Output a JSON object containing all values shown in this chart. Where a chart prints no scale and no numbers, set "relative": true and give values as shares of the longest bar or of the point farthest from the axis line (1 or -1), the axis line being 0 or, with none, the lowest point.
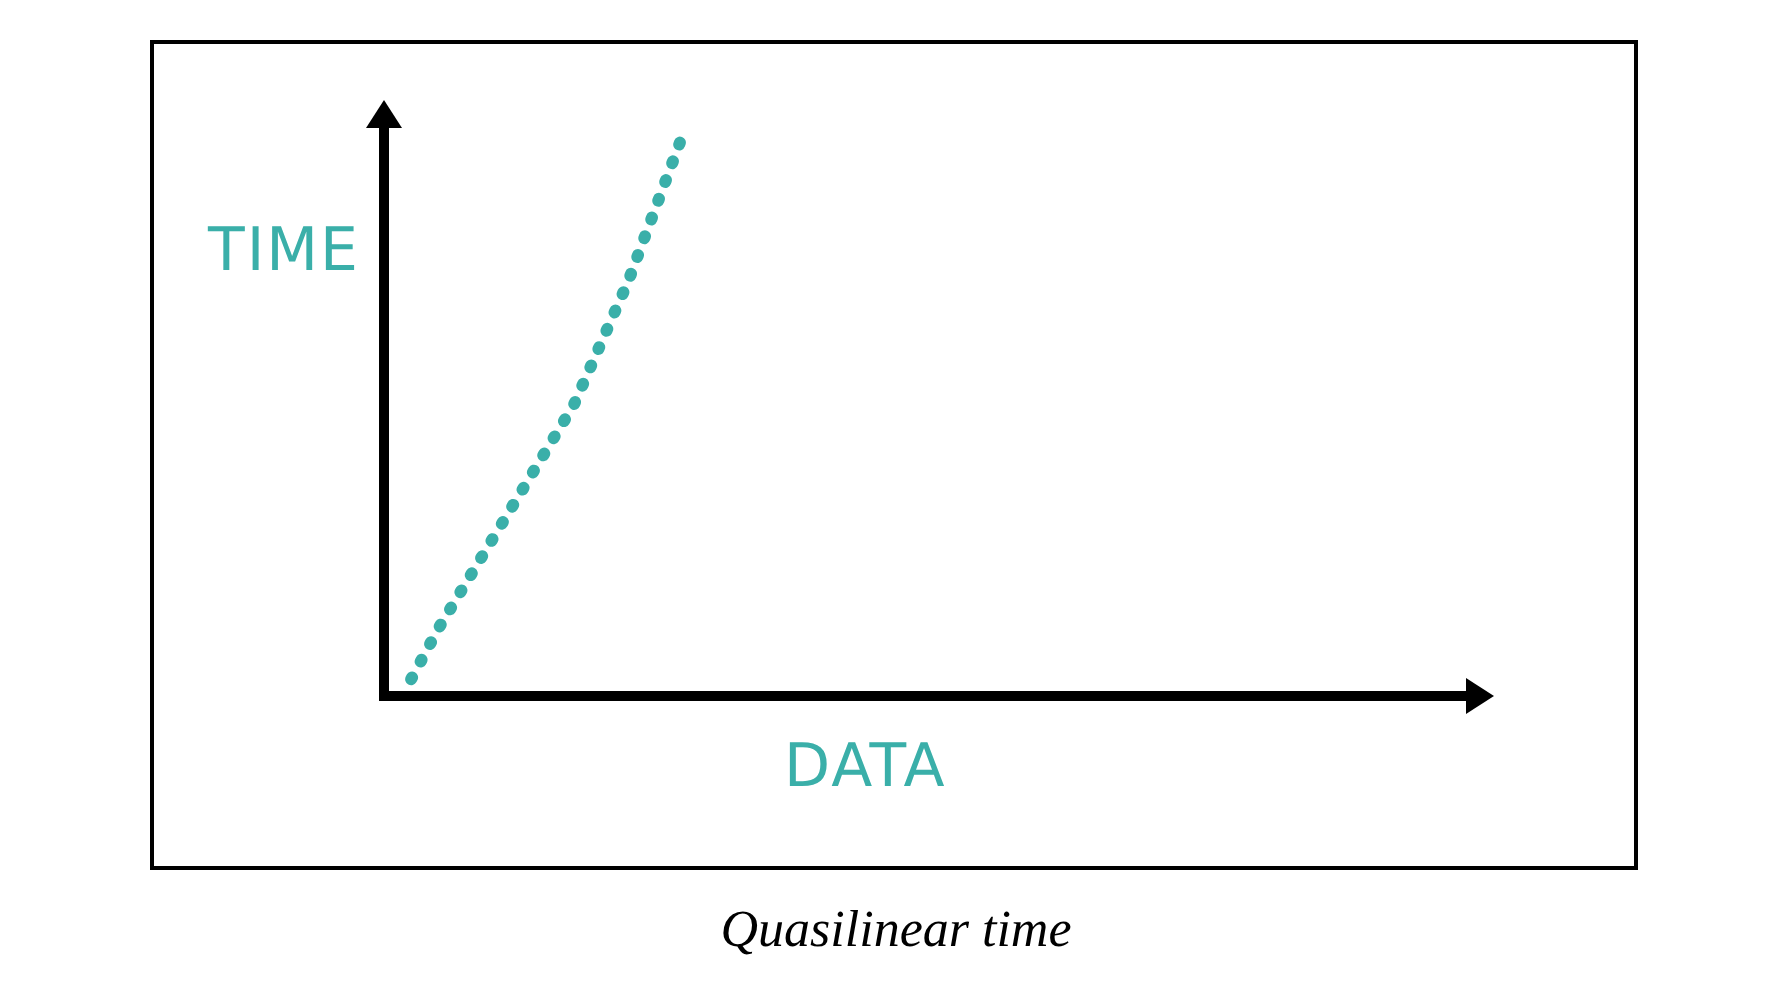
{
  "chart_data": {
    "type": "line",
    "relative": true,
    "xlabel": "DATA",
    "ylabel": "TIME",
    "categories": [
      null,
      null,
      null,
      null,
      null,
      null,
      null,
      null,
      null,
      null,
      null,
      null,
      null,
      null,
      null,
      null,
      null,
      null,
      null,
      null,
      null,
      null,
      null,
      null,
      null,
      null,
      null,
      null,
      null,
      null,
      null,
      null,
      null,
      null,
      null,
      null,
      null,
      null,
      null,
      null,
      null
    ],
    "series": [
      {
        "color": "#3aafa9",
        "values": [
          null,
          0.03,
          0.12,
          0.2,
          0.28,
          0.36,
          0.44,
          0.52,
          0.63,
          0.74,
          0.87,
          1,
          null,
          null,
          null,
          null,
          null,
          null,
          null,
          null,
          null,
          null,
          null,
          null,
          null,
          null,
          null,
          null,
          null,
          null,
          null,
          null,
          null,
          null,
          null,
          null,
          null,
          null,
          null,
          null,
          null
        ]
      }
    ],
    "line_style": "dotted",
    "marker": "none",
    "grid": false,
    "legend": false,
    "annotations": [
      "Quasilinear time"
    ]
  }
}
